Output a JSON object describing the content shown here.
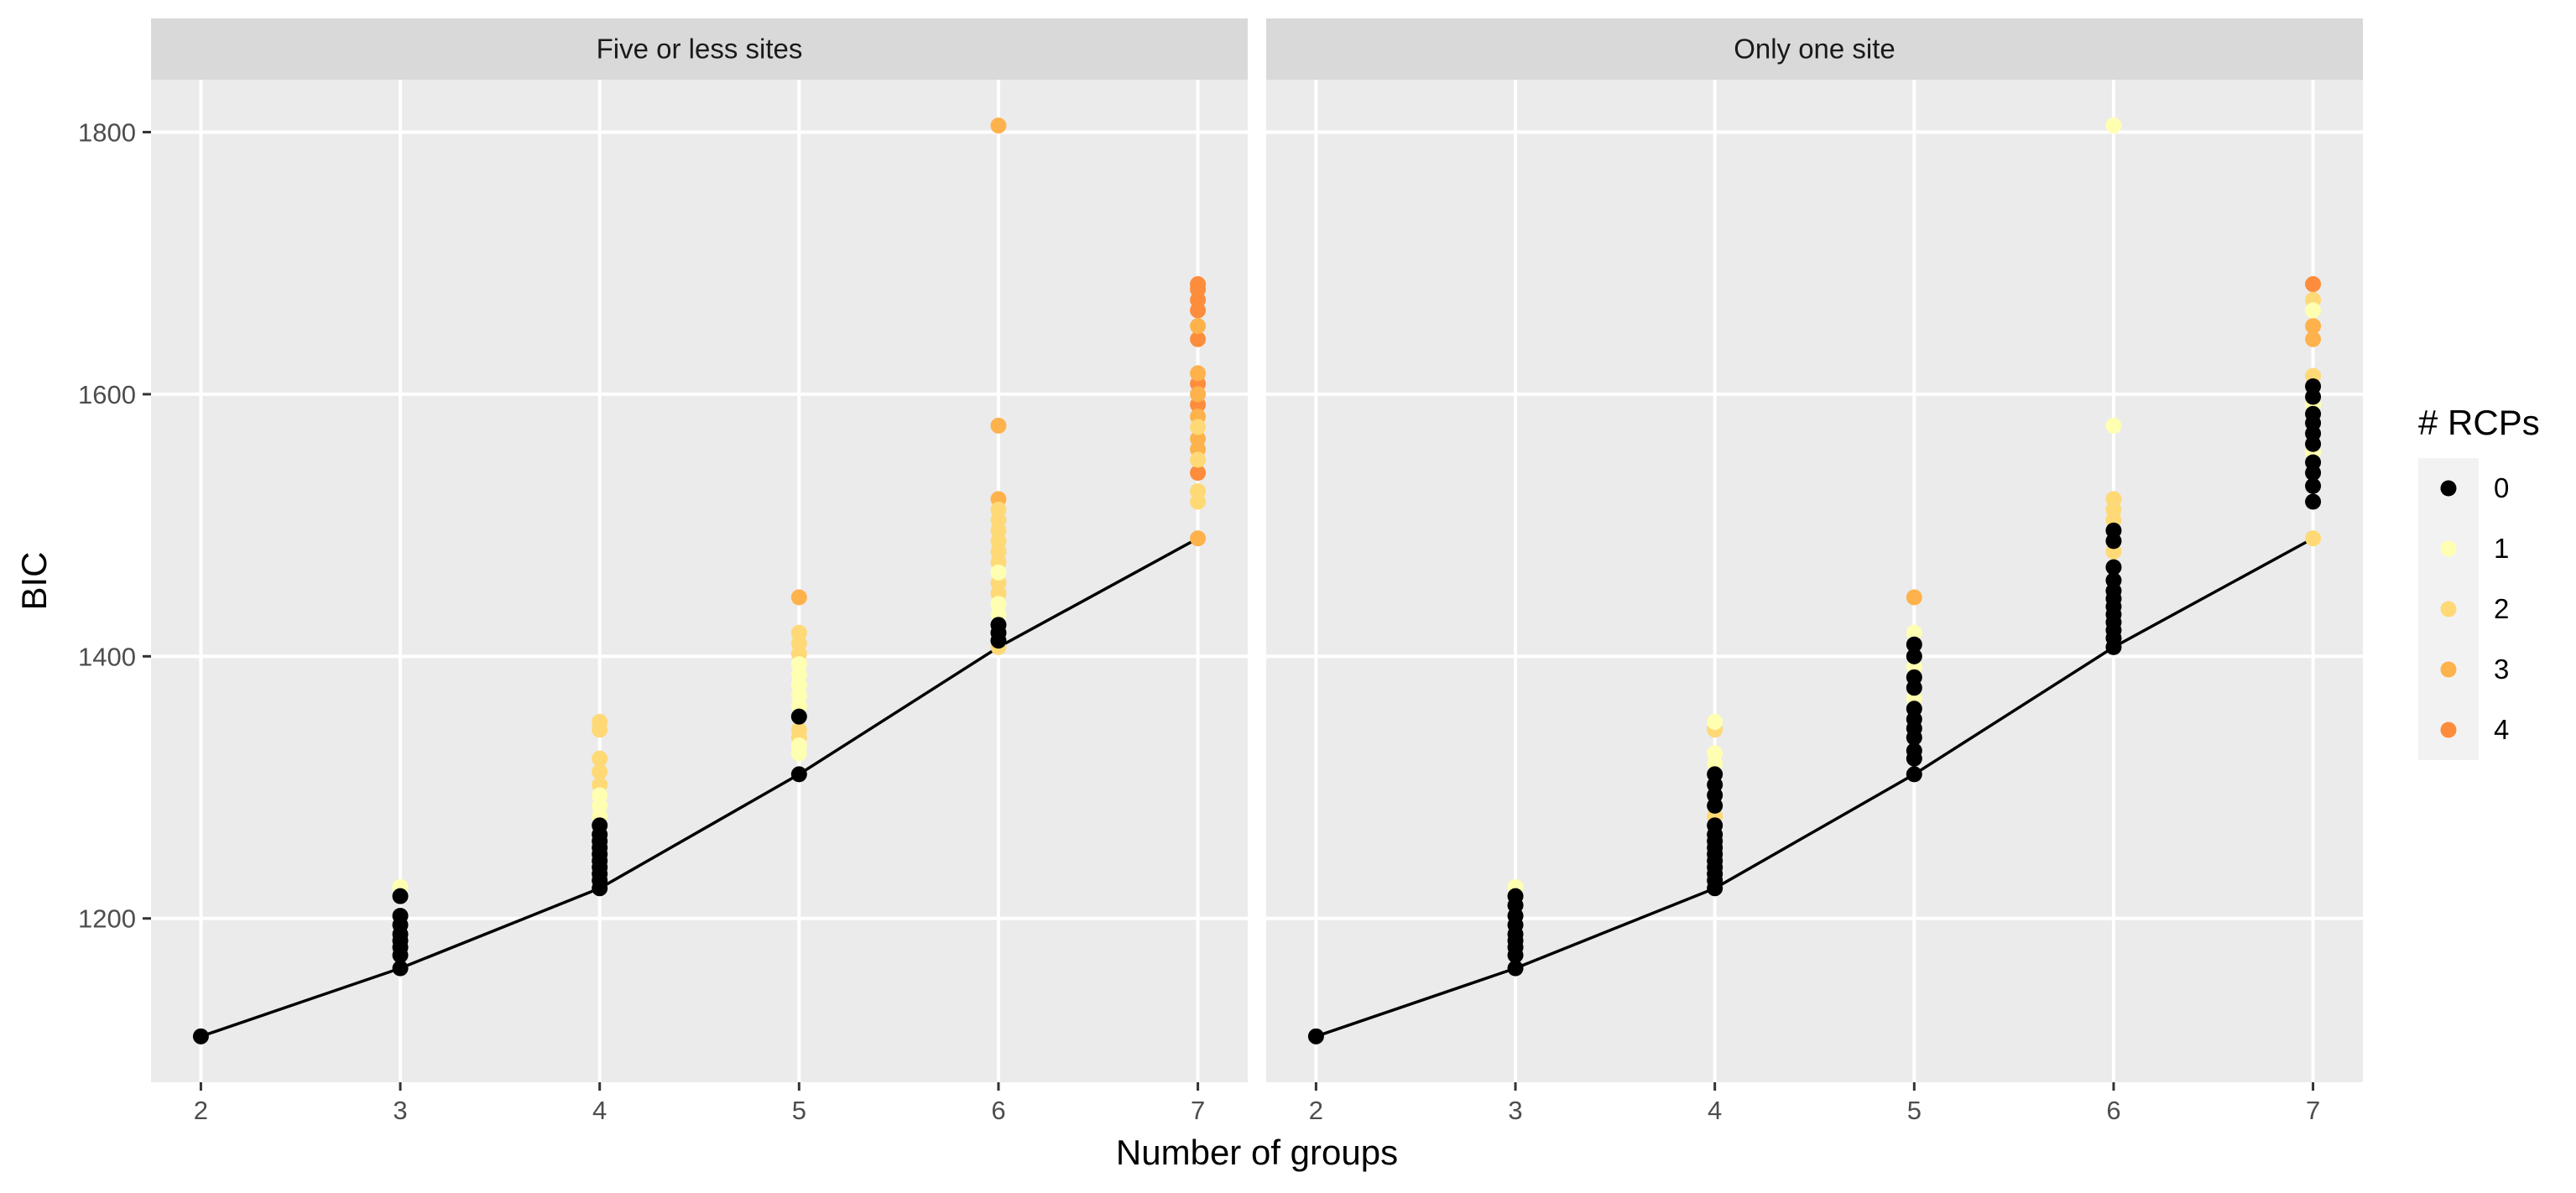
{
  "chart_data": {
    "type": "scatter",
    "xlabel": "Number of groups",
    "ylabel": "BIC",
    "x_ticks": [
      2,
      3,
      4,
      5,
      6,
      7
    ],
    "y_ticks": [
      1200,
      1400,
      1600,
      1800
    ],
    "xlim": [
      1.75,
      7.25
    ],
    "ylim": [
      1075,
      1840
    ],
    "grid": true,
    "legend": {
      "title": "# RCPs",
      "position": "right",
      "entries": [
        {
          "label": "0",
          "color": "#000000"
        },
        {
          "label": "1",
          "color": "#FFFFB2"
        },
        {
          "label": "2",
          "color": "#FED976"
        },
        {
          "label": "3",
          "color": "#FEB24C"
        },
        {
          "label": "4",
          "color": "#FD8D3C"
        }
      ]
    },
    "min_line": {
      "x": [
        2,
        3,
        4,
        5,
        6,
        7
      ],
      "y": [
        1110,
        1162,
        1223,
        1310,
        1407,
        1490
      ]
    },
    "panels": [
      {
        "title": "Five or less sites",
        "points": [
          {
            "x": 2,
            "y": 1110,
            "rcp": "0"
          },
          {
            "x": 3,
            "y": 1162,
            "rcp": "0"
          },
          {
            "x": 3,
            "y": 1172,
            "rcp": "0"
          },
          {
            "x": 3,
            "y": 1178,
            "rcp": "0"
          },
          {
            "x": 3,
            "y": 1183,
            "rcp": "0"
          },
          {
            "x": 3,
            "y": 1188,
            "rcp": "0"
          },
          {
            "x": 3,
            "y": 1195,
            "rcp": "0"
          },
          {
            "x": 3,
            "y": 1202,
            "rcp": "0"
          },
          {
            "x": 3,
            "y": 1217,
            "rcp": "0"
          },
          {
            "x": 3,
            "y": 1224,
            "rcp": "1"
          },
          {
            "x": 4,
            "y": 1223,
            "rcp": "0"
          },
          {
            "x": 4,
            "y": 1229,
            "rcp": "0"
          },
          {
            "x": 4,
            "y": 1234,
            "rcp": "0"
          },
          {
            "x": 4,
            "y": 1239,
            "rcp": "0"
          },
          {
            "x": 4,
            "y": 1244,
            "rcp": "0"
          },
          {
            "x": 4,
            "y": 1249,
            "rcp": "0"
          },
          {
            "x": 4,
            "y": 1254,
            "rcp": "0"
          },
          {
            "x": 4,
            "y": 1259,
            "rcp": "0"
          },
          {
            "x": 4,
            "y": 1264,
            "rcp": "0"
          },
          {
            "x": 4,
            "y": 1271,
            "rcp": "0"
          },
          {
            "x": 4,
            "y": 1278,
            "rcp": "1"
          },
          {
            "x": 4,
            "y": 1286,
            "rcp": "1"
          },
          {
            "x": 4,
            "y": 1294,
            "rcp": "1"
          },
          {
            "x": 4,
            "y": 1302,
            "rcp": "2"
          },
          {
            "x": 4,
            "y": 1312,
            "rcp": "2"
          },
          {
            "x": 4,
            "y": 1322,
            "rcp": "2"
          },
          {
            "x": 4,
            "y": 1344,
            "rcp": "2"
          },
          {
            "x": 4,
            "y": 1350,
            "rcp": "2"
          },
          {
            "x": 5,
            "y": 1310,
            "rcp": "0"
          },
          {
            "x": 5,
            "y": 1326,
            "rcp": "1"
          },
          {
            "x": 5,
            "y": 1332,
            "rcp": "1"
          },
          {
            "x": 5,
            "y": 1338,
            "rcp": "2"
          },
          {
            "x": 5,
            "y": 1344,
            "rcp": "2"
          },
          {
            "x": 5,
            "y": 1354,
            "rcp": "0"
          },
          {
            "x": 5,
            "y": 1362,
            "rcp": "1"
          },
          {
            "x": 5,
            "y": 1370,
            "rcp": "1"
          },
          {
            "x": 5,
            "y": 1378,
            "rcp": "1"
          },
          {
            "x": 5,
            "y": 1386,
            "rcp": "1"
          },
          {
            "x": 5,
            "y": 1394,
            "rcp": "1"
          },
          {
            "x": 5,
            "y": 1402,
            "rcp": "2"
          },
          {
            "x": 5,
            "y": 1410,
            "rcp": "2"
          },
          {
            "x": 5,
            "y": 1418,
            "rcp": "2"
          },
          {
            "x": 5,
            "y": 1445,
            "rcp": "3"
          },
          {
            "x": 6,
            "y": 1407,
            "rcp": "2"
          },
          {
            "x": 6,
            "y": 1412,
            "rcp": "0"
          },
          {
            "x": 6,
            "y": 1418,
            "rcp": "0"
          },
          {
            "x": 6,
            "y": 1424,
            "rcp": "0"
          },
          {
            "x": 6,
            "y": 1432,
            "rcp": "1"
          },
          {
            "x": 6,
            "y": 1440,
            "rcp": "1"
          },
          {
            "x": 6,
            "y": 1448,
            "rcp": "2"
          },
          {
            "x": 6,
            "y": 1456,
            "rcp": "2"
          },
          {
            "x": 6,
            "y": 1464,
            "rcp": "1"
          },
          {
            "x": 6,
            "y": 1472,
            "rcp": "2"
          },
          {
            "x": 6,
            "y": 1480,
            "rcp": "2"
          },
          {
            "x": 6,
            "y": 1488,
            "rcp": "2"
          },
          {
            "x": 6,
            "y": 1496,
            "rcp": "2"
          },
          {
            "x": 6,
            "y": 1504,
            "rcp": "2"
          },
          {
            "x": 6,
            "y": 1512,
            "rcp": "2"
          },
          {
            "x": 6,
            "y": 1520,
            "rcp": "3"
          },
          {
            "x": 6,
            "y": 1576,
            "rcp": "3"
          },
          {
            "x": 6,
            "y": 1805,
            "rcp": "3"
          },
          {
            "x": 7,
            "y": 1490,
            "rcp": "3"
          },
          {
            "x": 7,
            "y": 1518,
            "rcp": "2"
          },
          {
            "x": 7,
            "y": 1526,
            "rcp": "2"
          },
          {
            "x": 7,
            "y": 1540,
            "rcp": "4"
          },
          {
            "x": 7,
            "y": 1550,
            "rcp": "2"
          },
          {
            "x": 7,
            "y": 1558,
            "rcp": "3"
          },
          {
            "x": 7,
            "y": 1566,
            "rcp": "3"
          },
          {
            "x": 7,
            "y": 1575,
            "rcp": "2"
          },
          {
            "x": 7,
            "y": 1583,
            "rcp": "3"
          },
          {
            "x": 7,
            "y": 1592,
            "rcp": "4"
          },
          {
            "x": 7,
            "y": 1600,
            "rcp": "3"
          },
          {
            "x": 7,
            "y": 1608,
            "rcp": "4"
          },
          {
            "x": 7,
            "y": 1616,
            "rcp": "3"
          },
          {
            "x": 7,
            "y": 1642,
            "rcp": "4"
          },
          {
            "x": 7,
            "y": 1652,
            "rcp": "3"
          },
          {
            "x": 7,
            "y": 1664,
            "rcp": "4"
          },
          {
            "x": 7,
            "y": 1672,
            "rcp": "4"
          },
          {
            "x": 7,
            "y": 1680,
            "rcp": "4"
          },
          {
            "x": 7,
            "y": 1684,
            "rcp": "4"
          }
        ]
      },
      {
        "title": "Only one site",
        "points": [
          {
            "x": 2,
            "y": 1110,
            "rcp": "0"
          },
          {
            "x": 3,
            "y": 1162,
            "rcp": "0"
          },
          {
            "x": 3,
            "y": 1172,
            "rcp": "0"
          },
          {
            "x": 3,
            "y": 1178,
            "rcp": "0"
          },
          {
            "x": 3,
            "y": 1183,
            "rcp": "0"
          },
          {
            "x": 3,
            "y": 1188,
            "rcp": "0"
          },
          {
            "x": 3,
            "y": 1195,
            "rcp": "0"
          },
          {
            "x": 3,
            "y": 1202,
            "rcp": "0"
          },
          {
            "x": 3,
            "y": 1210,
            "rcp": "0"
          },
          {
            "x": 3,
            "y": 1217,
            "rcp": "0"
          },
          {
            "x": 3,
            "y": 1224,
            "rcp": "1"
          },
          {
            "x": 4,
            "y": 1223,
            "rcp": "0"
          },
          {
            "x": 4,
            "y": 1229,
            "rcp": "0"
          },
          {
            "x": 4,
            "y": 1234,
            "rcp": "0"
          },
          {
            "x": 4,
            "y": 1239,
            "rcp": "0"
          },
          {
            "x": 4,
            "y": 1244,
            "rcp": "0"
          },
          {
            "x": 4,
            "y": 1249,
            "rcp": "0"
          },
          {
            "x": 4,
            "y": 1254,
            "rcp": "0"
          },
          {
            "x": 4,
            "y": 1259,
            "rcp": "0"
          },
          {
            "x": 4,
            "y": 1264,
            "rcp": "0"
          },
          {
            "x": 4,
            "y": 1271,
            "rcp": "0"
          },
          {
            "x": 4,
            "y": 1278,
            "rcp": "2"
          },
          {
            "x": 4,
            "y": 1286,
            "rcp": "0"
          },
          {
            "x": 4,
            "y": 1294,
            "rcp": "0"
          },
          {
            "x": 4,
            "y": 1302,
            "rcp": "0"
          },
          {
            "x": 4,
            "y": 1310,
            "rcp": "0"
          },
          {
            "x": 4,
            "y": 1318,
            "rcp": "1"
          },
          {
            "x": 4,
            "y": 1326,
            "rcp": "1"
          },
          {
            "x": 4,
            "y": 1344,
            "rcp": "2"
          },
          {
            "x": 4,
            "y": 1350,
            "rcp": "1"
          },
          {
            "x": 5,
            "y": 1310,
            "rcp": "0"
          },
          {
            "x": 5,
            "y": 1322,
            "rcp": "0"
          },
          {
            "x": 5,
            "y": 1328,
            "rcp": "0"
          },
          {
            "x": 5,
            "y": 1338,
            "rcp": "0"
          },
          {
            "x": 5,
            "y": 1345,
            "rcp": "0"
          },
          {
            "x": 5,
            "y": 1352,
            "rcp": "0"
          },
          {
            "x": 5,
            "y": 1360,
            "rcp": "0"
          },
          {
            "x": 5,
            "y": 1368,
            "rcp": "1"
          },
          {
            "x": 5,
            "y": 1376,
            "rcp": "0"
          },
          {
            "x": 5,
            "y": 1384,
            "rcp": "0"
          },
          {
            "x": 5,
            "y": 1392,
            "rcp": "1"
          },
          {
            "x": 5,
            "y": 1400,
            "rcp": "0"
          },
          {
            "x": 5,
            "y": 1409,
            "rcp": "0"
          },
          {
            "x": 5,
            "y": 1418,
            "rcp": "1"
          },
          {
            "x": 5,
            "y": 1445,
            "rcp": "3"
          },
          {
            "x": 6,
            "y": 1407,
            "rcp": "0"
          },
          {
            "x": 6,
            "y": 1414,
            "rcp": "0"
          },
          {
            "x": 6,
            "y": 1420,
            "rcp": "0"
          },
          {
            "x": 6,
            "y": 1426,
            "rcp": "0"
          },
          {
            "x": 6,
            "y": 1432,
            "rcp": "0"
          },
          {
            "x": 6,
            "y": 1438,
            "rcp": "0"
          },
          {
            "x": 6,
            "y": 1444,
            "rcp": "0"
          },
          {
            "x": 6,
            "y": 1450,
            "rcp": "0"
          },
          {
            "x": 6,
            "y": 1458,
            "rcp": "0"
          },
          {
            "x": 6,
            "y": 1468,
            "rcp": "0"
          },
          {
            "x": 6,
            "y": 1480,
            "rcp": "2"
          },
          {
            "x": 6,
            "y": 1488,
            "rcp": "0"
          },
          {
            "x": 6,
            "y": 1496,
            "rcp": "0"
          },
          {
            "x": 6,
            "y": 1504,
            "rcp": "2"
          },
          {
            "x": 6,
            "y": 1512,
            "rcp": "2"
          },
          {
            "x": 6,
            "y": 1520,
            "rcp": "2"
          },
          {
            "x": 6,
            "y": 1576,
            "rcp": "1"
          },
          {
            "x": 6,
            "y": 1805,
            "rcp": "1"
          },
          {
            "x": 7,
            "y": 1490,
            "rcp": "2"
          },
          {
            "x": 7,
            "y": 1518,
            "rcp": "0"
          },
          {
            "x": 7,
            "y": 1530,
            "rcp": "0"
          },
          {
            "x": 7,
            "y": 1540,
            "rcp": "0"
          },
          {
            "x": 7,
            "y": 1548,
            "rcp": "0"
          },
          {
            "x": 7,
            "y": 1556,
            "rcp": "1"
          },
          {
            "x": 7,
            "y": 1562,
            "rcp": "0"
          },
          {
            "x": 7,
            "y": 1570,
            "rcp": "0"
          },
          {
            "x": 7,
            "y": 1578,
            "rcp": "0"
          },
          {
            "x": 7,
            "y": 1585,
            "rcp": "0"
          },
          {
            "x": 7,
            "y": 1592,
            "rcp": "1"
          },
          {
            "x": 7,
            "y": 1598,
            "rcp": "0"
          },
          {
            "x": 7,
            "y": 1606,
            "rcp": "0"
          },
          {
            "x": 7,
            "y": 1614,
            "rcp": "2"
          },
          {
            "x": 7,
            "y": 1642,
            "rcp": "3"
          },
          {
            "x": 7,
            "y": 1652,
            "rcp": "3"
          },
          {
            "x": 7,
            "y": 1664,
            "rcp": "1"
          },
          {
            "x": 7,
            "y": 1672,
            "rcp": "2"
          },
          {
            "x": 7,
            "y": 1684,
            "rcp": "4"
          }
        ]
      }
    ]
  }
}
